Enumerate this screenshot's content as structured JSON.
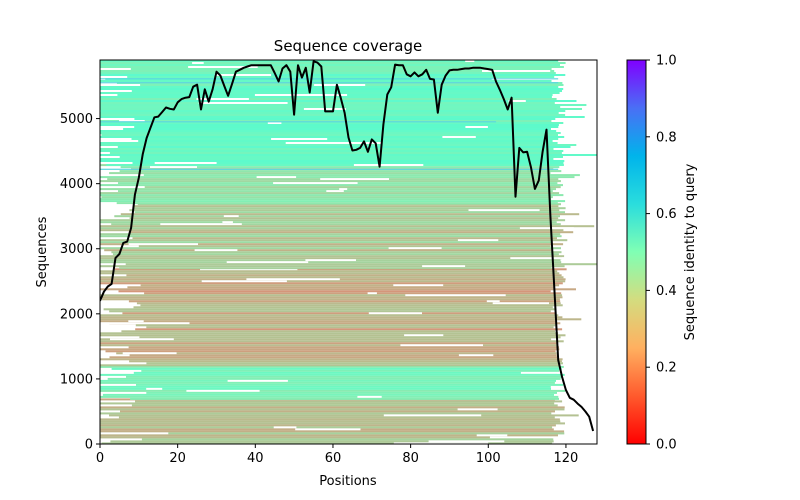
{
  "chart_data": {
    "type": "heatmap",
    "title": "Sequence coverage",
    "xlabel": "Positions",
    "ylabel": "Sequences",
    "xlim": [
      0,
      128
    ],
    "ylim": [
      0,
      5900
    ],
    "x_ticks": [
      0,
      20,
      40,
      60,
      80,
      100,
      120
    ],
    "y_ticks": [
      0,
      1000,
      2000,
      3000,
      4000,
      5000
    ],
    "grid": false,
    "heatmap": {
      "description": "Per-sequence alignment coverage colored by sequence identity to query",
      "colormap": "rainbow_r",
      "bands": [
        {
          "y_range": [
            0,
            700
          ],
          "identity": 0.22
        },
        {
          "y_range": [
            700,
            1200
          ],
          "identity": 0.42
        },
        {
          "y_range": [
            1200,
            2700
          ],
          "identity": 0.18
        },
        {
          "y_range": [
            2700,
            3700
          ],
          "identity": 0.24
        },
        {
          "y_range": [
            3700,
            4300
          ],
          "identity": 0.33
        },
        {
          "y_range": [
            4300,
            5900
          ],
          "identity": 0.45
        }
      ]
    },
    "colorbar": {
      "label": "Sequence identity to query",
      "range": [
        0,
        1
      ],
      "ticks": [
        0.0,
        0.2,
        0.4,
        0.6,
        0.8,
        1.0
      ],
      "tick_labels": [
        "0.0",
        "0.2",
        "0.4",
        "0.6",
        "0.8",
        "1.0"
      ]
    },
    "series": [
      {
        "name": "coverage",
        "color": "#000000",
        "x": [
          0,
          1,
          2,
          3,
          4,
          5,
          6,
          7,
          8,
          9,
          10,
          11,
          12,
          13,
          14,
          15,
          16,
          17,
          18,
          19,
          20,
          21,
          22,
          23,
          24,
          25,
          26,
          27,
          28,
          29,
          30,
          31,
          32,
          33,
          34,
          35,
          36,
          37,
          38,
          39,
          40,
          41,
          42,
          43,
          44,
          45,
          46,
          47,
          48,
          49,
          50,
          51,
          52,
          53,
          54,
          55,
          56,
          57,
          58,
          59,
          60,
          61,
          62,
          63,
          64,
          65,
          66,
          67,
          68,
          69,
          70,
          71,
          72,
          73,
          74,
          75,
          76,
          77,
          78,
          79,
          80,
          81,
          82,
          83,
          84,
          85,
          86,
          87,
          88,
          89,
          90,
          91,
          92,
          93,
          94,
          95,
          96,
          97,
          98,
          99,
          100,
          101,
          102,
          103,
          104,
          105,
          106,
          107,
          108,
          109,
          110,
          111,
          112,
          113,
          114,
          115,
          116,
          117,
          118,
          119,
          120,
          121,
          122,
          123,
          124,
          125,
          126,
          127
        ],
        "y": [
          2200,
          2340,
          2420,
          2460,
          2860,
          2920,
          3090,
          3110,
          3320,
          3830,
          4090,
          4450,
          4700,
          4860,
          5020,
          5030,
          5100,
          5170,
          5150,
          5140,
          5250,
          5300,
          5320,
          5330,
          5490,
          5520,
          5140,
          5450,
          5260,
          5450,
          5720,
          5660,
          5500,
          5350,
          5530,
          5720,
          5750,
          5780,
          5800,
          5820,
          5820,
          5820,
          5820,
          5820,
          5820,
          5700,
          5570,
          5770,
          5820,
          5720,
          5060,
          5820,
          5630,
          5780,
          5400,
          5880,
          5860,
          5800,
          5110,
          5110,
          5110,
          5520,
          5320,
          5090,
          4710,
          4510,
          4520,
          4550,
          4650,
          4490,
          4680,
          4620,
          4260,
          4910,
          5370,
          5480,
          5830,
          5820,
          5820,
          5680,
          5650,
          5710,
          5650,
          5680,
          5750,
          5610,
          5600,
          5090,
          5520,
          5660,
          5740,
          5750,
          5750,
          5760,
          5770,
          5770,
          5780,
          5780,
          5780,
          5770,
          5760,
          5750,
          5570,
          5440,
          5300,
          5140,
          5320,
          3800,
          4550,
          4480,
          4490,
          4250,
          3920,
          4050,
          4490,
          4830,
          3500,
          2400,
          1290,
          1030,
          830,
          710,
          680,
          620,
          570,
          500,
          420,
          200
        ]
      }
    ]
  }
}
